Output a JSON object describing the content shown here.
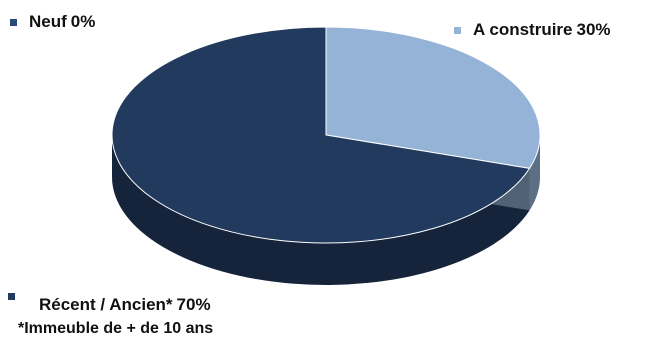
{
  "chart_data": {
    "type": "pie",
    "style": "3d",
    "slices": [
      {
        "label": "Neuf",
        "value": 0,
        "value_text": "0%",
        "color": "#2c4a78"
      },
      {
        "label": "A construire",
        "value": 30,
        "value_text": "30%",
        "color": "#95b3d7"
      },
      {
        "label": "Récent / Ancien*",
        "value": 70,
        "value_text": "70%",
        "color": "#223a5e"
      }
    ],
    "footnote": "*Immeuble de + de 10 ans",
    "legend": "corners"
  }
}
